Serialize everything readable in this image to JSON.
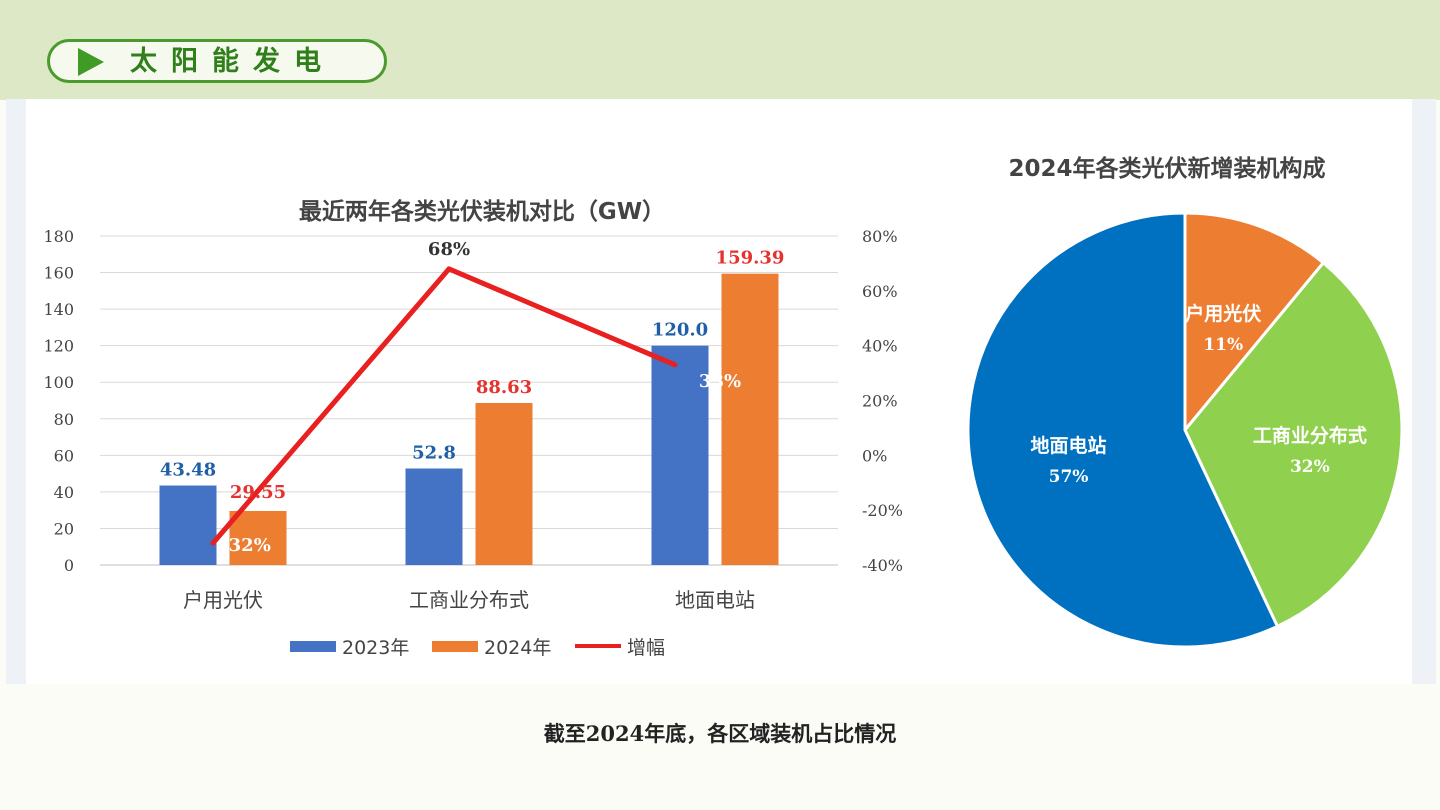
{
  "header": {
    "section_title": "太阳能发电"
  },
  "caption": "截至2024年底，各区域装机占比情况",
  "chart_data": [
    {
      "type": "bar",
      "title": "最近两年各类光伏装机对比（GW）",
      "categories": [
        "户用光伏",
        "工商业分布式",
        "地面电站"
      ],
      "series": [
        {
          "name": "2023年",
          "type": "bar",
          "axis": "left",
          "color": "#4472c4",
          "values": [
            43.48,
            52.8,
            120.0
          ],
          "labels": [
            "43.48",
            "52.8",
            "120.0"
          ]
        },
        {
          "name": "2024年",
          "type": "bar",
          "axis": "left",
          "color": "#ed7d31",
          "values": [
            29.55,
            88.63,
            159.39
          ],
          "labels": [
            "29.55",
            "88.63",
            "159.39"
          ]
        },
        {
          "name": "增幅",
          "type": "line",
          "axis": "right",
          "color": "#e8201f",
          "values": [
            -32,
            68,
            33
          ],
          "labels": [
            "-32%",
            "68%",
            "33%"
          ]
        }
      ],
      "ylim": [
        0,
        180
      ],
      "yticks": [
        "0",
        "20",
        "40",
        "60",
        "80",
        "100",
        "120",
        "140",
        "160",
        "180"
      ],
      "y2lim": [
        -40,
        80
      ],
      "y2ticks": [
        "-40%",
        "-20%",
        "0%",
        "20%",
        "40%",
        "60%",
        "80%"
      ],
      "grid": true,
      "legend": "bottom"
    },
    {
      "type": "pie",
      "title": "2024年各类光伏新增装机构成",
      "slices": [
        {
          "label": "户用光伏",
          "value": 11,
          "display": "11%",
          "color": "#ed7d31"
        },
        {
          "label": "工商业分布式",
          "value": 32,
          "display": "32%",
          "color": "#8fd14f"
        },
        {
          "label": "地面电站",
          "value": 57,
          "display": "57%",
          "color": "#0070c0"
        }
      ],
      "start_angle": "12 o'clock",
      "direction": "clockwise"
    }
  ]
}
